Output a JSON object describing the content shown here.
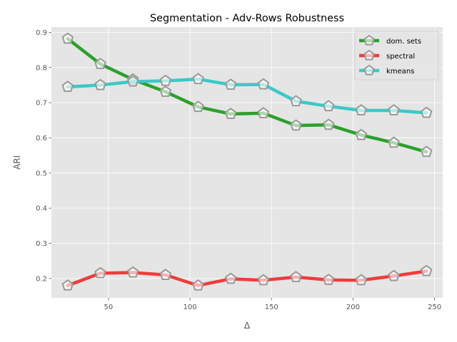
{
  "chart_data": {
    "type": "line",
    "title": "Segmentation - Adv-Rows Robustness",
    "xlabel": "Δ",
    "ylabel": "ARI",
    "x": [
      25,
      45,
      65,
      85,
      105,
      125,
      145,
      165,
      185,
      205,
      225,
      245
    ],
    "xlim": [
      15,
      255
    ],
    "ylim": [
      0.145,
      0.915
    ],
    "xticks": [
      50,
      100,
      150,
      200,
      250
    ],
    "yticks": [
      0.2,
      0.3,
      0.4,
      0.5,
      0.6,
      0.7,
      0.8,
      0.9
    ],
    "grid": true,
    "legend_position": "top-right",
    "marker": "pentagon",
    "series": [
      {
        "name": "dom. sets",
        "color": "#2ca02c",
        "values": [
          0.882,
          0.81,
          0.766,
          0.731,
          0.688,
          0.668,
          0.67,
          0.635,
          0.637,
          0.608,
          0.586,
          0.56
        ]
      },
      {
        "name": "spectral",
        "color": "#f03c3c",
        "values": [
          0.18,
          0.215,
          0.217,
          0.21,
          0.18,
          0.199,
          0.195,
          0.204,
          0.196,
          0.195,
          0.207,
          0.221
        ]
      },
      {
        "name": "kmeans",
        "color": "#3cc8c8",
        "values": [
          0.745,
          0.75,
          0.76,
          0.762,
          0.767,
          0.751,
          0.752,
          0.704,
          0.69,
          0.678,
          0.678,
          0.671
        ]
      }
    ]
  }
}
